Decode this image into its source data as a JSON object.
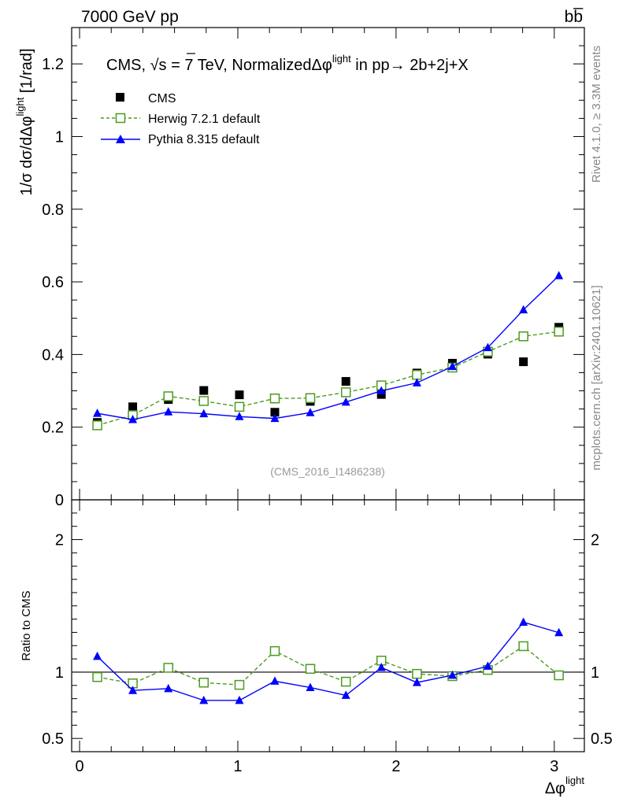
{
  "header": {
    "left": "7000 GeV pp",
    "right": "bb̅"
  },
  "side_labels": {
    "rivet": "Rivet 4.1.0, ≥ 3.3M events",
    "mcplots": "mcplots.cern.ch [arXiv:2401.10621]"
  },
  "chart_data": {
    "type": "scatter",
    "title_prefix": "CMS, ",
    "title_sqrt_s": "√s = 7 TeV, Normalized",
    "title_var": "Δφ",
    "title_sup": "light",
    "title_suffix": " in pp→  2b+2j+X",
    "watermark": "(CMS_2016_I1486238)",
    "ylabel_main": "1/σ dσ/dΔφ",
    "ylabel_main_sup": "light",
    "ylabel_main_unit": " [1/rad]",
    "ylabel_ratio": "Ratio to CMS",
    "xlabel": "Δφ",
    "xlabel_sup": "light",
    "xlim": [
      -0.05,
      3.19
    ],
    "ylim_main": [
      0,
      1.3
    ],
    "ylim_ratio": [
      0.4,
      2.3
    ],
    "x_ticks": [
      0,
      1,
      2,
      3
    ],
    "x_tick_labels": [
      "0",
      "1",
      "2",
      "3"
    ],
    "y_ticks_main": [
      0,
      0.2,
      0.4,
      0.6,
      0.8,
      1,
      1.2
    ],
    "y_tick_labels_main": [
      "0",
      "0.2",
      "0.4",
      "0.6",
      "0.8",
      "1",
      "1.2"
    ],
    "y_ticks_ratio": [
      0.5,
      1,
      2
    ],
    "y_tick_labels_ratio": [
      "0.5",
      "1",
      "2"
    ],
    "x": [
      0.112,
      0.336,
      0.561,
      0.785,
      1.01,
      1.234,
      1.458,
      1.683,
      1.907,
      2.132,
      2.356,
      2.58,
      2.805,
      3.029
    ],
    "series": [
      {
        "name": "CMS",
        "color": "#000000",
        "marker": "filled-square",
        "line": "none",
        "values": [
          0.213,
          0.256,
          0.276,
          0.301,
          0.289,
          0.241,
          0.271,
          0.326,
          0.29,
          0.349,
          0.376,
          0.401,
          0.38,
          0.475
        ],
        "ratio": [
          1,
          1,
          1,
          1,
          1,
          1,
          1,
          1,
          1,
          1,
          1,
          1,
          1,
          1
        ]
      },
      {
        "name": "Herwig 7.2.1 default",
        "color": "#4b9b1f",
        "marker": "open-square",
        "line": "dashed",
        "values": [
          0.205,
          0.233,
          0.285,
          0.272,
          0.256,
          0.279,
          0.28,
          0.296,
          0.315,
          0.344,
          0.364,
          0.408,
          0.45,
          0.463
        ],
        "ratio": [
          0.963,
          0.915,
          1.033,
          0.921,
          0.904,
          1.159,
          1.025,
          0.928,
          1.087,
          0.987,
          0.97,
          1.017,
          1.196,
          0.976
        ]
      },
      {
        "name": "Pythia 8.315 default",
        "color": "#0000ff",
        "marker": "filled-triangle",
        "line": "solid",
        "values": [
          0.238,
          0.221,
          0.242,
          0.237,
          0.229,
          0.224,
          0.24,
          0.269,
          0.3,
          0.322,
          0.367,
          0.419,
          0.523,
          0.617
        ],
        "ratio": [
          1.119,
          0.862,
          0.876,
          0.787,
          0.787,
          0.932,
          0.884,
          0.825,
          1.035,
          0.922,
          0.977,
          1.045,
          1.377,
          1.298
        ]
      }
    ]
  }
}
